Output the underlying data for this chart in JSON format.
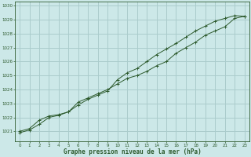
{
  "xlabel": "Graphe pression niveau de la mer (hPa)",
  "background_color": "#cce8e8",
  "grid_color": "#aacccc",
  "line_color": "#2d5a2d",
  "xlim": [
    -0.5,
    23.5
  ],
  "ylim": [
    1020.3,
    1030.3
  ],
  "yticks": [
    1021,
    1022,
    1023,
    1024,
    1025,
    1026,
    1027,
    1028,
    1029,
    1030
  ],
  "xticks": [
    0,
    1,
    2,
    3,
    4,
    5,
    6,
    7,
    8,
    9,
    10,
    11,
    12,
    13,
    14,
    15,
    16,
    17,
    18,
    19,
    20,
    21,
    22,
    23
  ],
  "series1_x": [
    0,
    1,
    2,
    3,
    4,
    5,
    6,
    7,
    8,
    9,
    10,
    11,
    12,
    13,
    14,
    15,
    16,
    17,
    18,
    19,
    20,
    21,
    22,
    23
  ],
  "series1_y": [
    1021.0,
    1021.2,
    1021.8,
    1022.1,
    1022.2,
    1022.4,
    1023.1,
    1023.4,
    1023.7,
    1024.0,
    1024.4,
    1024.8,
    1025.0,
    1025.3,
    1025.7,
    1026.0,
    1026.6,
    1027.0,
    1027.4,
    1027.9,
    1028.2,
    1028.5,
    1029.1,
    1029.25
  ],
  "series2_x": [
    0,
    1,
    2,
    3,
    4,
    5,
    6,
    7,
    8,
    9,
    10,
    11,
    12,
    13,
    14,
    15,
    16,
    17,
    18,
    19,
    20,
    21,
    22,
    23
  ],
  "series2_y": [
    1020.9,
    1021.1,
    1021.5,
    1022.0,
    1022.15,
    1022.4,
    1022.9,
    1023.3,
    1023.6,
    1023.9,
    1024.7,
    1025.2,
    1025.5,
    1026.0,
    1026.5,
    1026.9,
    1027.3,
    1027.75,
    1028.2,
    1028.55,
    1028.9,
    1029.1,
    1029.3,
    1029.25
  ],
  "ylabel_fontsize": 4.0,
  "xlabel_fontsize": 5.5,
  "tick_fontsize": 4.0
}
